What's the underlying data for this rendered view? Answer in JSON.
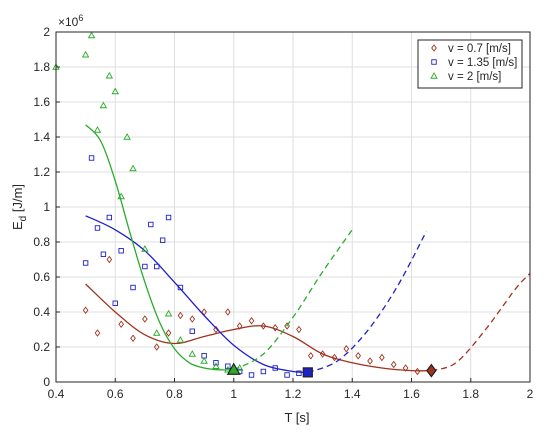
{
  "chart_data": {
    "type": "scatter",
    "xlabel": "T [s]",
    "ylabel_main": "E",
    "ylabel_sub": "d",
    "ylabel_unit": " [J/m]",
    "y_exponent_label": "×10",
    "y_exponent_power": "6",
    "xlim": [
      0.4,
      2.0
    ],
    "ylim": [
      0,
      2000000
    ],
    "y_scale_factor": 1000000,
    "x_ticks": [
      0.4,
      0.6,
      0.8,
      1.0,
      1.2,
      1.4,
      1.6,
      1.8,
      2.0
    ],
    "x_tick_labels": [
      "0.4",
      "0.6",
      "0.8",
      "1",
      "1.2",
      "1.4",
      "1.6",
      "1.8",
      "2"
    ],
    "y_ticks": [
      0,
      200000,
      400000,
      600000,
      800000,
      1000000,
      1200000,
      1400000,
      1600000,
      1800000,
      2000000
    ],
    "y_tick_labels": [
      "0",
      "0.2",
      "0.4",
      "0.6",
      "0.8",
      "1",
      "1.2",
      "1.4",
      "1.6",
      "1.8",
      "2"
    ],
    "grid": true,
    "legend_position": "top-right",
    "series": [
      {
        "name": "v = 0.7 [m/s]",
        "color": "#a0321e",
        "marker": "diamond",
        "points": [
          [
            0.5,
            410000
          ],
          [
            0.54,
            280000
          ],
          [
            0.58,
            700000
          ],
          [
            0.62,
            330000
          ],
          [
            0.66,
            250000
          ],
          [
            0.7,
            360000
          ],
          [
            0.74,
            200000
          ],
          [
            0.78,
            280000
          ],
          [
            0.82,
            380000
          ],
          [
            0.86,
            360000
          ],
          [
            0.9,
            400000
          ],
          [
            0.94,
            300000
          ],
          [
            0.98,
            400000
          ],
          [
            1.02,
            320000
          ],
          [
            1.06,
            350000
          ],
          [
            1.1,
            320000
          ],
          [
            1.14,
            310000
          ],
          [
            1.18,
            320000
          ],
          [
            1.22,
            300000
          ],
          [
            1.26,
            150000
          ],
          [
            1.3,
            160000
          ],
          [
            1.34,
            140000
          ],
          [
            1.38,
            190000
          ],
          [
            1.42,
            150000
          ],
          [
            1.46,
            120000
          ],
          [
            1.5,
            140000
          ],
          [
            1.54,
            100000
          ],
          [
            1.58,
            80000
          ],
          [
            1.62,
            60000
          ]
        ],
        "fit": [
          [
            0.5,
            560000
          ],
          [
            0.6,
            400000
          ],
          [
            0.7,
            270000
          ],
          [
            0.8,
            220000
          ],
          [
            0.9,
            260000
          ],
          [
            1.0,
            300000
          ],
          [
            1.1,
            320000
          ],
          [
            1.2,
            260000
          ],
          [
            1.3,
            160000
          ],
          [
            1.4,
            110000
          ],
          [
            1.5,
            80000
          ],
          [
            1.6,
            65000
          ],
          [
            1.667,
            65000
          ]
        ],
        "extrapolation": [
          [
            1.667,
            65000
          ],
          [
            1.75,
            110000
          ],
          [
            1.85,
            300000
          ],
          [
            1.95,
            530000
          ],
          [
            2.0,
            620000
          ]
        ],
        "optimum": [
          1.667,
          65000
        ]
      },
      {
        "name": "v = 1.35 [m/s]",
        "color": "#2020c8",
        "marker": "square",
        "points": [
          [
            0.5,
            680000
          ],
          [
            0.52,
            1280000
          ],
          [
            0.54,
            880000
          ],
          [
            0.56,
            730000
          ],
          [
            0.58,
            940000
          ],
          [
            0.6,
            450000
          ],
          [
            0.62,
            750000
          ],
          [
            0.66,
            540000
          ],
          [
            0.7,
            660000
          ],
          [
            0.72,
            900000
          ],
          [
            0.74,
            660000
          ],
          [
            0.76,
            810000
          ],
          [
            0.78,
            940000
          ],
          [
            0.82,
            540000
          ],
          [
            0.86,
            290000
          ],
          [
            0.9,
            150000
          ],
          [
            0.94,
            110000
          ],
          [
            0.98,
            90000
          ],
          [
            1.02,
            60000
          ],
          [
            1.06,
            40000
          ],
          [
            1.1,
            60000
          ],
          [
            1.14,
            80000
          ],
          [
            1.18,
            40000
          ],
          [
            1.22,
            50000
          ]
        ],
        "fit": [
          [
            0.5,
            950000
          ],
          [
            0.6,
            870000
          ],
          [
            0.7,
            750000
          ],
          [
            0.8,
            570000
          ],
          [
            0.9,
            380000
          ],
          [
            1.0,
            210000
          ],
          [
            1.1,
            100000
          ],
          [
            1.2,
            60000
          ],
          [
            1.25,
            55000
          ]
        ],
        "extrapolation": [
          [
            1.25,
            55000
          ],
          [
            1.35,
            120000
          ],
          [
            1.45,
            290000
          ],
          [
            1.55,
            540000
          ],
          [
            1.65,
            860000
          ]
        ],
        "optimum": [
          1.25,
          55000
        ]
      },
      {
        "name": "v = 2 [m/s]",
        "color": "#2aac2a",
        "marker": "triangle",
        "points": [
          [
            0.4,
            1800000
          ],
          [
            0.5,
            1870000
          ],
          [
            0.52,
            1980000
          ],
          [
            0.54,
            1440000
          ],
          [
            0.56,
            1580000
          ],
          [
            0.58,
            1750000
          ],
          [
            0.6,
            1660000
          ],
          [
            0.62,
            1060000
          ],
          [
            0.64,
            1400000
          ],
          [
            0.66,
            1220000
          ],
          [
            0.7,
            760000
          ],
          [
            0.74,
            280000
          ],
          [
            0.78,
            390000
          ],
          [
            0.82,
            240000
          ],
          [
            0.86,
            160000
          ],
          [
            0.9,
            120000
          ],
          [
            0.94,
            90000
          ],
          [
            0.98,
            70000
          ],
          [
            1.0,
            60000
          ],
          [
            1.02,
            80000
          ]
        ],
        "fit": [
          [
            0.5,
            1470000
          ],
          [
            0.55,
            1380000
          ],
          [
            0.6,
            1150000
          ],
          [
            0.65,
            850000
          ],
          [
            0.7,
            570000
          ],
          [
            0.75,
            340000
          ],
          [
            0.8,
            190000
          ],
          [
            0.85,
            110000
          ],
          [
            0.9,
            80000
          ],
          [
            0.95,
            70000
          ],
          [
            1.0,
            70000
          ]
        ],
        "extrapolation": [
          [
            1.0,
            70000
          ],
          [
            1.1,
            160000
          ],
          [
            1.2,
            370000
          ],
          [
            1.3,
            630000
          ],
          [
            1.4,
            870000
          ]
        ],
        "optimum": [
          1.0,
          70000
        ]
      }
    ]
  }
}
